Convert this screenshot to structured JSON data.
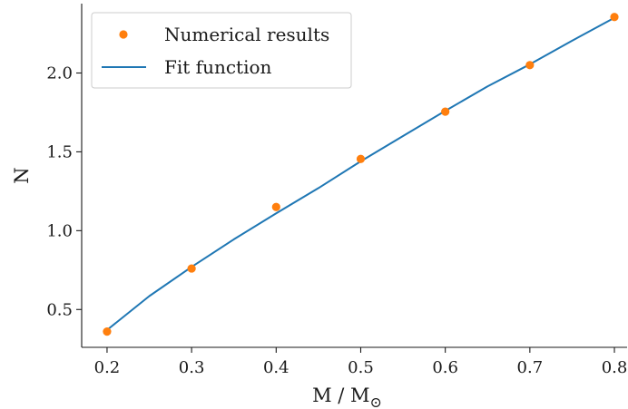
{
  "chart_data": {
    "type": "scatter",
    "x": [
      0.2,
      0.3,
      0.4,
      0.5,
      0.6,
      0.7,
      0.8
    ],
    "series": [
      {
        "name": "Numerical results",
        "kind": "scatter",
        "color": "#ff7f0e",
        "x": [
          0.2,
          0.3,
          0.4,
          0.5,
          0.6,
          0.7,
          0.8
        ],
        "y": [
          0.36,
          0.76,
          1.15,
          1.455,
          1.755,
          2.05,
          2.355
        ]
      },
      {
        "name": "Fit function",
        "kind": "line",
        "color": "#1f77b4",
        "x": [
          0.2,
          0.25,
          0.3,
          0.35,
          0.4,
          0.45,
          0.5,
          0.55,
          0.6,
          0.65,
          0.7,
          0.75,
          0.8
        ],
        "y": [
          0.37,
          0.585,
          0.77,
          0.945,
          1.11,
          1.27,
          1.44,
          1.6,
          1.76,
          1.915,
          2.055,
          2.205,
          2.35
        ]
      }
    ],
    "xlabel": "M / M",
    "xlabel_subscript": "⊙",
    "ylabel": "N",
    "xlim": [
      0.17,
      0.815
    ],
    "ylim": [
      0.26,
      2.44
    ],
    "xticks": [
      0.2,
      0.3,
      0.4,
      0.5,
      0.6,
      0.7,
      0.8
    ],
    "xtick_labels": [
      "0.2",
      "0.3",
      "0.4",
      "0.5",
      "0.6",
      "0.7",
      "0.8"
    ],
    "yticks": [
      0.5,
      1.0,
      1.5,
      2.0
    ],
    "ytick_labels": [
      "0.5",
      "1.0",
      "1.5",
      "2.0"
    ],
    "legend": {
      "placement": "top-left",
      "entries": [
        "Numerical results",
        "Fit function"
      ]
    },
    "grid": false,
    "spines": [
      "left",
      "bottom"
    ]
  }
}
